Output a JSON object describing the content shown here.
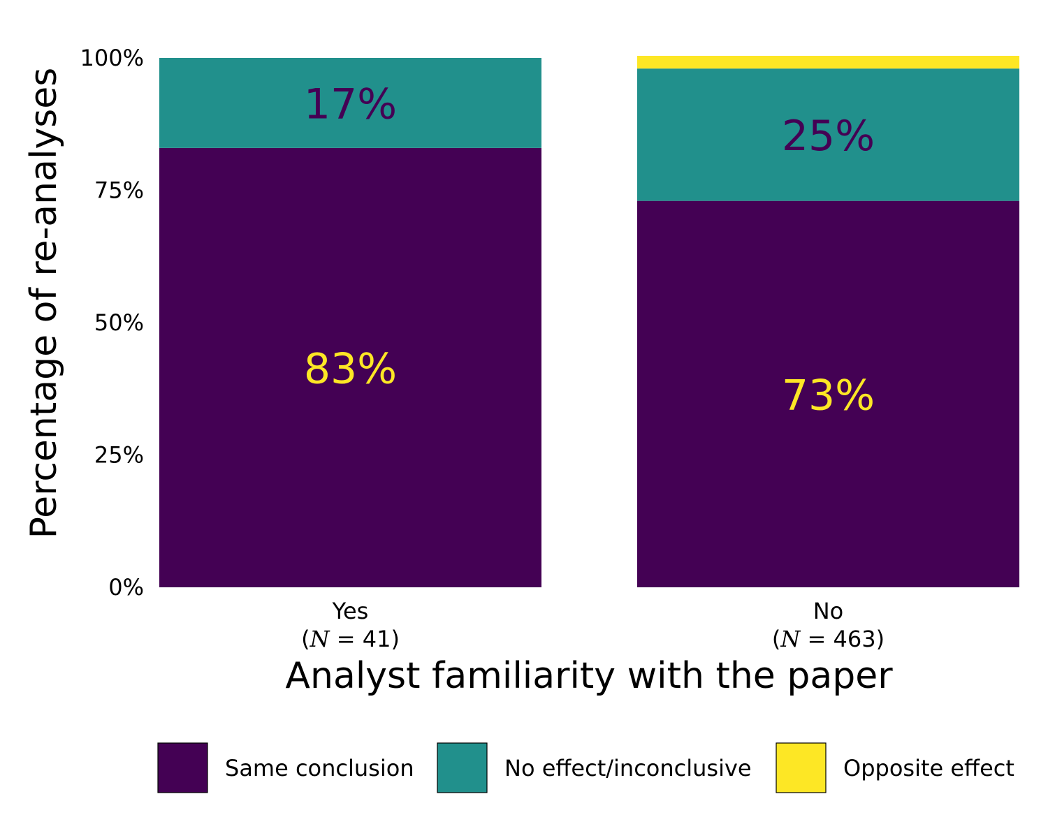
{
  "chart_data": {
    "type": "bar",
    "stacked": true,
    "xlabel": "Analyst familiarity with the paper",
    "ylabel": "Percentage of re-analyses",
    "ylim": [
      0,
      100
    ],
    "yticks": [
      "0%",
      "25%",
      "50%",
      "75%",
      "100%"
    ],
    "ytick_values": [
      0,
      25,
      50,
      75,
      100
    ],
    "grid": false,
    "legend_position": "bottom",
    "categories": [
      {
        "label": "Yes",
        "n_prefix": "(",
        "n_symbol": "N",
        "n_text": " = 41)"
      },
      {
        "label": "No",
        "n_prefix": "(",
        "n_symbol": "N",
        "n_text": " = 463)"
      }
    ],
    "series": [
      {
        "name": "Same conclusion",
        "color": "#440154",
        "values": [
          83,
          73
        ],
        "labels": [
          "83%",
          "73%"
        ],
        "label_color": "#FDE725"
      },
      {
        "name": "No effect/inconclusive",
        "color": "#21908C",
        "values": [
          17,
          25
        ],
        "labels": [
          "17%",
          "25%"
        ],
        "label_color": "#440154"
      },
      {
        "name": "Opposite effect",
        "color": "#FDE725",
        "values": [
          0,
          2.4
        ],
        "labels": [
          "",
          ""
        ],
        "label_color": "#440154"
      }
    ]
  }
}
